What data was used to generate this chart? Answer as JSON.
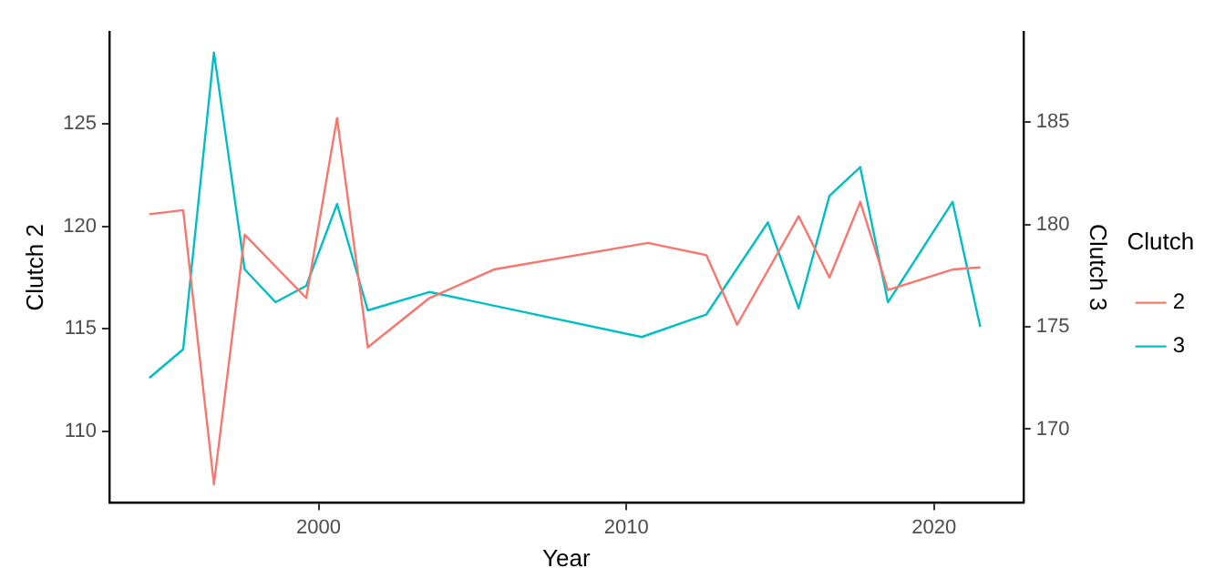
{
  "chart_data": {
    "type": "line",
    "xlabel": "Year",
    "ylabel": "Clutch 2",
    "y2label": "Clutch 3",
    "legend_title": "Clutch",
    "xlim": [
      1993.2,
      2022.9
    ],
    "xticks": [
      2000,
      2010,
      2020
    ],
    "ylim": [
      106.5,
      129.5
    ],
    "yticks": [
      110,
      115,
      120,
      125
    ],
    "y2lim": [
      166.4,
      189.4
    ],
    "y2ticks": [
      170,
      175,
      180,
      185
    ],
    "grid": false,
    "legend": "right",
    "marker": "none",
    "line_style": "solid",
    "series": [
      {
        "name": "2",
        "color": "#f8766d",
        "x": [
          1994.5,
          1995.6,
          1996.6,
          1997.6,
          1999.6,
          2000.6,
          2001.6,
          2003.6,
          2005.7,
          2010.7,
          2012.6,
          2013.6,
          2015.6,
          2016.6,
          2017.6,
          2018.5,
          2020.6,
          2021.5
        ],
        "values": [
          120.6,
          120.8,
          107.4,
          119.6,
          116.5,
          125.3,
          114.1,
          116.5,
          117.9,
          119.2,
          118.6,
          115.2,
          120.5,
          117.5,
          121.2,
          116.9,
          117.9,
          118.0
        ]
      },
      {
        "name": "3",
        "color": "#00bfc4",
        "axis": "y2",
        "x": [
          1994.5,
          1995.6,
          1996.6,
          1997.6,
          1998.6,
          1999.6,
          2000.6,
          2001.6,
          2003.6,
          2010.5,
          2012.6,
          2014.6,
          2015.6,
          2016.6,
          2017.6,
          2018.5,
          2020.6,
          2021.5
        ],
        "values": [
          172.5,
          173.9,
          188.4,
          177.8,
          176.2,
          177.0,
          181.0,
          175.8,
          176.7,
          174.5,
          175.6,
          180.1,
          175.9,
          181.4,
          182.8,
          176.2,
          181.1,
          175.0
        ]
      }
    ]
  }
}
